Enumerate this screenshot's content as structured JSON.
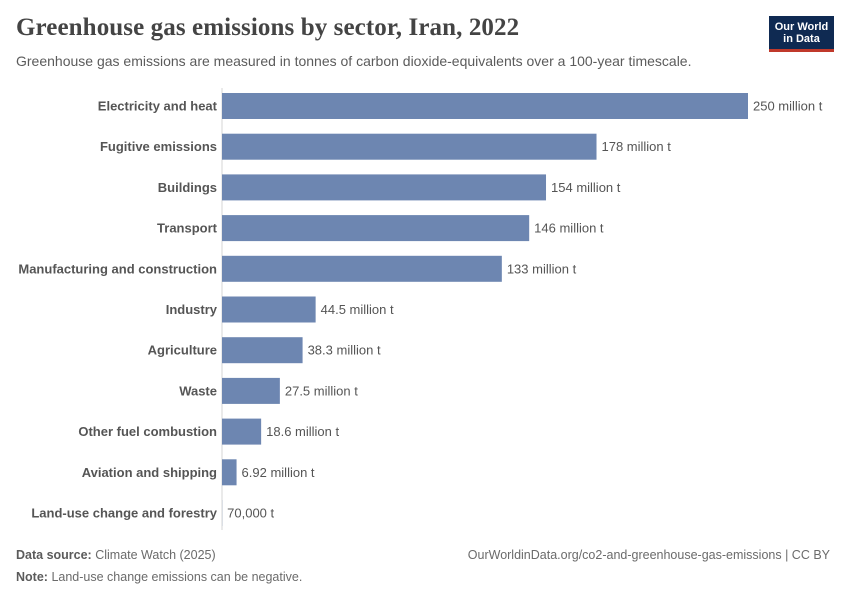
{
  "chart_data": {
    "type": "bar",
    "orientation": "horizontal",
    "title": "Greenhouse gas emissions by sector, Iran, 2022",
    "subtitle": "Greenhouse gas emissions are measured in tonnes of carbon dioxide-equivalents over a 100-year timescale.",
    "categories": [
      "Electricity and heat",
      "Fugitive emissions",
      "Buildings",
      "Transport",
      "Manufacturing and construction",
      "Industry",
      "Agriculture",
      "Waste",
      "Other fuel combustion",
      "Aviation and shipping",
      "Land-use change and forestry"
    ],
    "values": [
      250000000,
      178000000,
      154000000,
      146000000,
      133000000,
      44500000,
      38300000,
      27500000,
      18600000,
      6920000,
      70000
    ],
    "value_labels": [
      "250 million t",
      "178 million t",
      "154 million t",
      "146 million t",
      "133 million t",
      "44.5 million t",
      "38.3 million t",
      "27.5 million t",
      "18.6 million t",
      "6.92 million t",
      "70,000 t"
    ],
    "unit": "t",
    "xlim": [
      0,
      250000000
    ],
    "bar_color": "#6d86b1"
  },
  "branding": {
    "logo_line1": "Our World",
    "logo_line2": "in Data",
    "logo_bg": "#0f2a52",
    "logo_accent": "#c0392b"
  },
  "footer": {
    "source_label": "Data source:",
    "source_value": "Climate Watch (2025)",
    "url": "OurWorldinData.org/co2-and-greenhouse-gas-emissions | CC BY",
    "note_label": "Note:",
    "note_value": "Land-use change emissions can be negative."
  }
}
